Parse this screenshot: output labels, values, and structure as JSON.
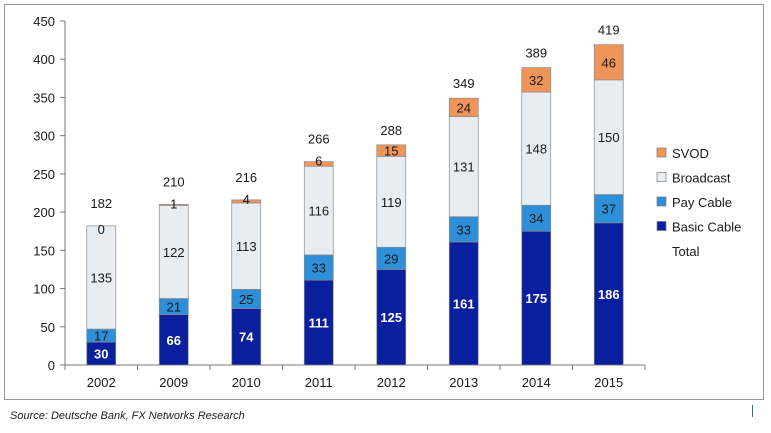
{
  "chart_data": {
    "type": "bar",
    "stacked": true,
    "categories": [
      "2002",
      "2009",
      "2010",
      "2011",
      "2012",
      "2013",
      "2014",
      "2015"
    ],
    "series": [
      {
        "name": "Basic Cable",
        "color": "#0a1f9e",
        "label_color": "#ffffff",
        "values": [
          30,
          66,
          74,
          111,
          125,
          161,
          175,
          186
        ]
      },
      {
        "name": "Pay Cable",
        "color": "#2d8fd8",
        "label_color": "#1a1a1a",
        "values": [
          17,
          21,
          25,
          33,
          29,
          33,
          34,
          37
        ]
      },
      {
        "name": "Broadcast",
        "color": "#e8edf2",
        "label_color": "#1a1a1a",
        "values": [
          135,
          122,
          113,
          116,
          119,
          131,
          148,
          150
        ]
      },
      {
        "name": "SVOD",
        "color": "#f0955a",
        "label_color": "#1a1a1a",
        "values": [
          0,
          1,
          4,
          6,
          15,
          24,
          32,
          46
        ]
      }
    ],
    "totals": [
      182,
      210,
      216,
      266,
      288,
      349,
      389,
      419
    ],
    "total_label": "Total",
    "legend_order": [
      "SVOD",
      "Broadcast",
      "Pay Cable",
      "Basic Cable",
      "Total"
    ],
    "legend_position": "right",
    "ylim": [
      0,
      450
    ],
    "yticks": [
      0,
      50,
      100,
      150,
      200,
      250,
      300,
      350,
      400,
      450
    ],
    "title": "",
    "xlabel": "",
    "ylabel": "",
    "grid": false
  },
  "footer": {
    "source": "Source: Deutsche Bank, FX Networks Research"
  }
}
